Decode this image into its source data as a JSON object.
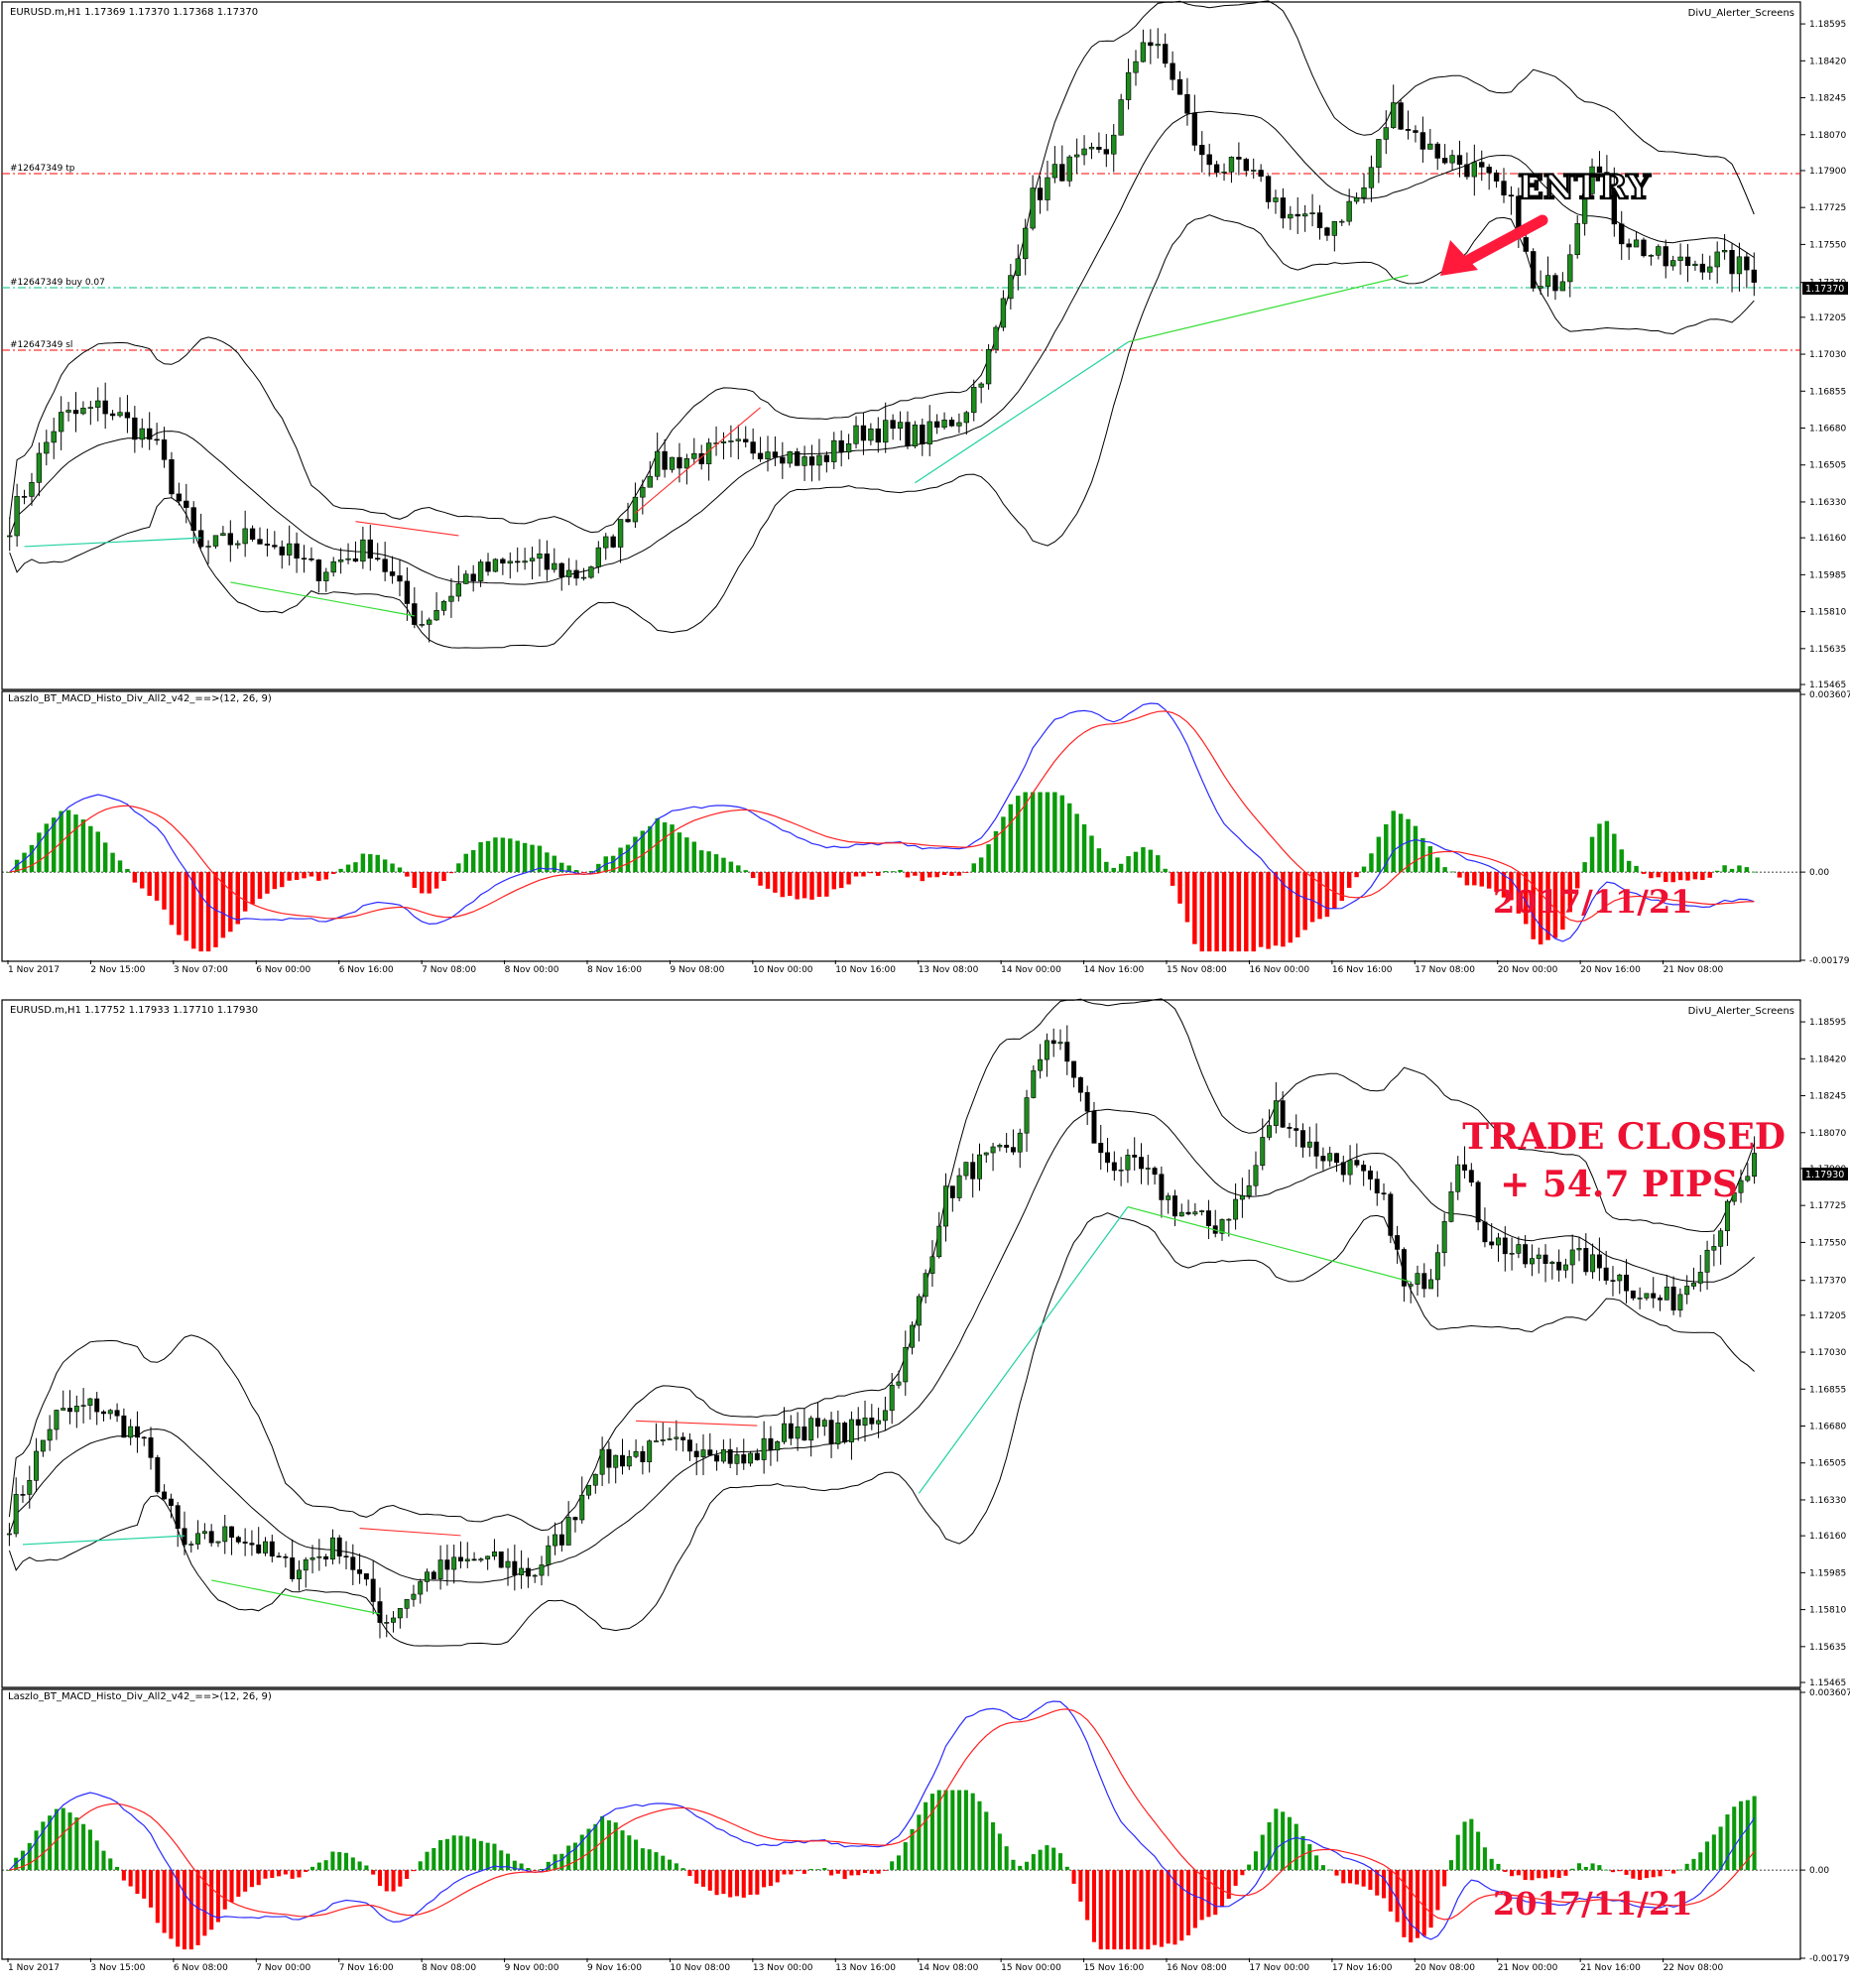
{
  "colors": {
    "background": "#ffffff",
    "frame": "#000000",
    "candle_up": "#1e8c1e",
    "candle_down": "#000000",
    "bands": "#000000",
    "tp_sl_line": "#ff0000",
    "entry_line": "#00c080",
    "macd_line": "#2a2aff",
    "signal_line": "#ff2020",
    "histo_up": "#0a9a0a",
    "histo_down": "#ff0000",
    "div_bull": "#1ed2a0",
    "div_bull_bright": "#33dd33",
    "div_bear": "#ff3030",
    "annotation_red": "#ee1133",
    "arrow": "#ff1a3c"
  },
  "price_scale": {
    "ticks": [
      "1.18595",
      "1.18420",
      "1.18245",
      "1.18070",
      "1.17900",
      "1.17725",
      "1.17550",
      "1.17370",
      "1.17205",
      "1.17030",
      "1.16855",
      "1.16680",
      "1.16505",
      "1.16330",
      "1.16160",
      "1.15985",
      "1.15810",
      "1.15635",
      "1.15465"
    ]
  },
  "macd_scale": {
    "ticks": [
      "0.003607",
      "0.00",
      "-0.00179"
    ]
  },
  "chart_data": [
    {
      "type": "line",
      "title": "EURUSD.m,H1  1.17369 1.17370 1.17368 1.17370",
      "indicator_title": "Laszlo_BT_MACD_Histo_Div_All2_v42_==>(12, 26, 9)",
      "corner_label": "DivU_Alerter_Screens",
      "x_labels": [
        "1 Nov 2017",
        "2 Nov 15:00",
        "3 Nov 07:00",
        "6 Nov 00:00",
        "6 Nov 16:00",
        "7 Nov 08:00",
        "8 Nov 00:00",
        "8 Nov 16:00",
        "9 Nov 08:00",
        "10 Nov 00:00",
        "10 Nov 16:00",
        "13 Nov 08:00",
        "14 Nov 00:00",
        "14 Nov 16:00",
        "15 Nov 08:00",
        "16 Nov 00:00",
        "16 Nov 16:00",
        "17 Nov 08:00",
        "20 Nov 00:00",
        "20 Nov 16:00",
        "21 Nov 08:00"
      ],
      "price_labels": {
        "current": "1.17370",
        "entry": "1.17370",
        "tp": "1.17925",
        "sl": "1.17080"
      },
      "order_lines": {
        "tp_label": "#12647349 tp",
        "buy_label": "#12647349 buy 0.07",
        "sl_label": "#12647349 sl"
      },
      "annotation": "ENTRY",
      "date_note": "2017/11/21",
      "ylim": [
        1.15465,
        1.1868
      ],
      "macd_ylim": [
        -0.00179,
        0.003607
      ]
    },
    {
      "type": "line",
      "title": "EURUSD.m,H1  1.17752 1.17933 1.17710 1.17930",
      "indicator_title": "Laszlo_BT_MACD_Histo_Div_All2_v42_==>(12, 26, 9)",
      "corner_label": "DivU_Alerter_Screens",
      "x_labels": [
        "1 Nov 2017",
        "3 Nov 15:00",
        "6 Nov 08:00",
        "7 Nov 00:00",
        "7 Nov 16:00",
        "8 Nov 08:00",
        "9 Nov 00:00",
        "9 Nov 16:00",
        "10 Nov 08:00",
        "13 Nov 00:00",
        "13 Nov 16:00",
        "14 Nov 08:00",
        "15 Nov 00:00",
        "15 Nov 16:00",
        "16 Nov 08:00",
        "17 Nov 00:00",
        "17 Nov 16:00",
        "20 Nov 08:00",
        "21 Nov 00:00",
        "21 Nov 16:00",
        "22 Nov 08:00"
      ],
      "price_labels": {
        "current": "1.17930"
      },
      "annotation_line1": "TRADE CLOSED",
      "annotation_line2": "+ 54.7 PIPS",
      "date_note": "2017/11/21",
      "ylim": [
        1.15465,
        1.1868
      ],
      "macd_ylim": [
        -0.00179,
        0.003607
      ]
    }
  ]
}
